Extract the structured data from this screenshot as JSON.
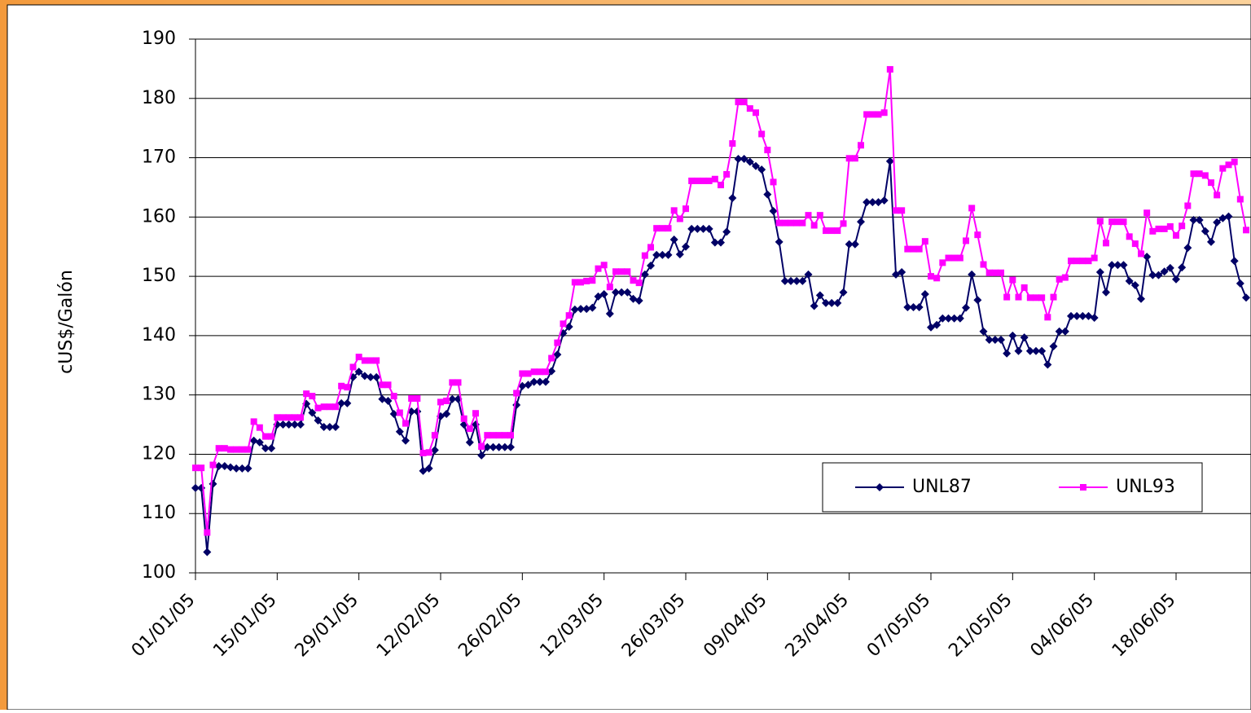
{
  "chart_data": {
    "type": "line",
    "ylabel": "cUS$/Galón",
    "ylim": [
      100,
      190
    ],
    "yticks": [
      100,
      110,
      120,
      130,
      140,
      150,
      160,
      170,
      180,
      190
    ],
    "grid": true,
    "categories": [
      "01/01/05",
      null,
      null,
      null,
      null,
      null,
      null,
      null,
      null,
      null,
      null,
      null,
      null,
      null,
      "15/01/05",
      null,
      null,
      null,
      null,
      null,
      null,
      null,
      null,
      null,
      null,
      null,
      null,
      null,
      "29/01/05",
      null,
      null,
      null,
      null,
      null,
      null,
      null,
      null,
      null,
      null,
      null,
      null,
      null,
      "12/02/05",
      null,
      null,
      null,
      null,
      null,
      null,
      null,
      null,
      null,
      null,
      null,
      null,
      null,
      "26/02/05",
      null,
      null,
      null,
      null,
      null,
      null,
      null,
      null,
      null,
      null,
      null,
      null,
      null,
      "12/03/05",
      null,
      null,
      null,
      null,
      null,
      null,
      null,
      null,
      null,
      null,
      null,
      null,
      null,
      "26/03/05",
      null,
      null,
      null,
      null,
      null,
      null,
      null,
      null,
      null,
      null,
      null,
      null,
      null,
      "09/04/05",
      null,
      null,
      null,
      null,
      null,
      null,
      null,
      null,
      null,
      null,
      null,
      null,
      null,
      "23/04/05",
      null,
      null,
      null,
      null,
      null,
      null,
      null,
      null,
      null,
      null,
      null,
      null,
      null,
      "07/05/05",
      null,
      null,
      null,
      null,
      null,
      null,
      null,
      null,
      null,
      null,
      null,
      null,
      null,
      "21/05/05",
      null,
      null,
      null,
      null,
      null,
      null,
      null,
      null,
      null,
      null,
      null,
      null,
      null,
      "04/06/05",
      null,
      null,
      null,
      null,
      null,
      null,
      null,
      null,
      null,
      null,
      null,
      null,
      null,
      "18/06/05",
      null,
      null,
      null,
      null,
      null,
      null,
      null,
      null,
      null,
      null,
      null,
      null
    ],
    "series": [
      {
        "name": "UNL87",
        "color": "#000066",
        "marker": "diamond",
        "values": [
          114.3,
          114.3,
          103.5,
          115,
          118,
          118,
          117.8,
          117.6,
          117.6,
          117.6,
          122.3,
          122,
          121,
          121,
          125,
          125,
          125,
          125,
          125,
          128.5,
          127,
          125.7,
          124.6,
          124.6,
          124.6,
          128.6,
          128.6,
          133,
          133.9,
          133.2,
          133,
          133,
          129.3,
          129,
          126.8,
          123.8,
          122.3,
          127.2,
          127.2,
          117.2,
          117.6,
          120.7,
          126.4,
          126.8,
          129.3,
          129.3,
          125,
          122,
          125,
          119.8,
          121.2,
          121.2,
          121.2,
          121.2,
          121.2,
          128.3,
          131.5,
          131.7,
          132.2,
          132.2,
          132.2,
          134,
          136.8,
          140.4,
          141.5,
          144.4,
          144.5,
          144.5,
          144.7,
          146.6,
          147,
          143.7,
          147.3,
          147.3,
          147.3,
          146.2,
          145.9,
          150.3,
          151.8,
          153.6,
          153.6,
          153.6,
          156.2,
          153.7,
          155,
          158,
          158,
          158,
          158,
          155.7,
          155.7,
          157.5,
          163.2,
          169.8,
          169.8,
          169.3,
          168.6,
          168,
          163.8,
          161,
          155.8,
          149.2,
          149.2,
          149.2,
          149.2,
          150.3,
          145,
          146.8,
          145.5,
          145.5,
          145.5,
          147.3,
          155.4,
          155.4,
          159.2,
          162.5,
          162.5,
          162.5,
          162.8,
          169.4,
          150.3,
          150.7,
          144.8,
          144.8,
          144.8,
          147,
          141.4,
          141.8,
          142.9,
          142.9,
          142.9,
          142.9,
          144.7,
          150.3,
          146,
          140.7,
          139.3,
          139.3,
          139.3,
          137,
          140,
          137.4,
          139.7,
          137.4,
          137.4,
          137.4,
          135.1,
          138.2,
          140.7,
          140.7,
          143.3,
          143.3,
          143.3,
          143.3,
          143,
          150.7,
          147.3,
          151.9,
          151.9,
          151.9,
          149.2,
          148.5,
          146.2,
          153.3,
          150.2,
          150.2,
          150.8,
          151.4,
          149.5,
          151.5,
          154.8,
          159.5,
          159.5,
          157.6,
          155.8,
          159.1,
          159.8,
          160.1,
          152.6,
          148.8,
          146.4
        ]
      },
      {
        "name": "UNL93",
        "color": "#FF00FF",
        "marker": "square",
        "values": [
          117.7,
          117.7,
          106.8,
          118.2,
          121,
          121,
          120.8,
          120.8,
          120.8,
          120.8,
          125.5,
          124.5,
          123,
          123,
          126.2,
          126.2,
          126.2,
          126.2,
          126.2,
          130.2,
          129.8,
          127.8,
          128,
          128,
          128,
          131.5,
          131.3,
          134.7,
          136.4,
          135.8,
          135.8,
          135.8,
          131.7,
          131.7,
          129.8,
          127,
          125.2,
          129.4,
          129.4,
          120.2,
          120.3,
          123.2,
          128.8,
          129,
          132.1,
          132.1,
          126,
          124.3,
          126.9,
          121.3,
          123.2,
          123.2,
          123.2,
          123.2,
          123.2,
          130.3,
          133.6,
          133.6,
          133.9,
          133.9,
          133.9,
          136.2,
          138.8,
          142,
          143.4,
          149,
          149,
          149.2,
          149.3,
          151.3,
          151.9,
          148.2,
          150.8,
          150.8,
          150.8,
          149.3,
          148.9,
          153.5,
          154.9,
          158.1,
          158.1,
          158.1,
          161.1,
          159.7,
          161.4,
          166.1,
          166.1,
          166.1,
          166.1,
          166.4,
          165.4,
          167.2,
          172.4,
          179.4,
          179.4,
          178.3,
          177.6,
          174,
          171.3,
          165.9,
          159,
          159,
          159,
          159,
          159,
          160.3,
          158.6,
          160.3,
          157.7,
          157.7,
          157.7,
          158.9,
          169.9,
          169.9,
          172.1,
          177.3,
          177.3,
          177.3,
          177.6,
          184.9,
          161.1,
          161.1,
          154.6,
          154.6,
          154.6,
          155.9,
          150,
          149.7,
          152.3,
          153.1,
          153.1,
          153.1,
          156,
          161.5,
          157,
          152,
          150.6,
          150.6,
          150.6,
          146.5,
          149.4,
          146.5,
          148.1,
          146.4,
          146.4,
          146.4,
          143.1,
          146.5,
          149.5,
          149.8,
          152.6,
          152.6,
          152.6,
          152.6,
          153.1,
          159.3,
          155.6,
          159.2,
          159.2,
          159.2,
          156.7,
          155.5,
          153.8,
          160.7,
          157.6,
          158,
          158,
          158.4,
          156.9,
          158.5,
          161.9,
          167.3,
          167.3,
          167,
          165.8,
          163.7,
          168.2,
          168.8,
          169.3,
          163,
          157.8
        ]
      }
    ]
  }
}
